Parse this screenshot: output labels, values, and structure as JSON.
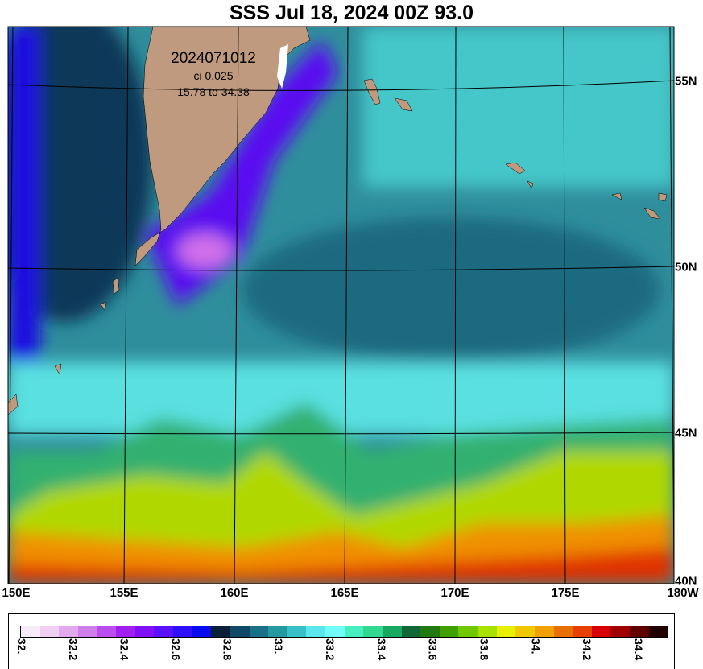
{
  "title": "SSS Jul 18, 2024 00Z 93.0",
  "info": {
    "run": "2024071012",
    "ci": "ci 0.025",
    "range": "15.78 to 34.38"
  },
  "lon_labels": [
    "150E",
    "155E",
    "160E",
    "165E",
    "170E",
    "175E",
    "180W"
  ],
  "lat_labels": [
    "55N",
    "50N",
    "45N",
    "40N"
  ],
  "colorbar": {
    "ticks": [
      "32.",
      "32.2",
      "32.4",
      "32.6",
      "32.8",
      "33.",
      "33.2",
      "33.4",
      "33.6",
      "33.8",
      "34.",
      "34.2",
      "34.4"
    ],
    "colors": [
      "#f8ecfa",
      "#efcff2",
      "#e2aaee",
      "#d07fea",
      "#bb4cee",
      "#a020f0",
      "#8010f5",
      "#5a10f8",
      "#3010fa",
      "#0a0cf0",
      "#0a2038",
      "#104a66",
      "#1a7088",
      "#249aa0",
      "#38c0c8",
      "#5ae6ec",
      "#70fcf8",
      "#48f0c0",
      "#30d890",
      "#18a860",
      "#106838",
      "#207a10",
      "#40a000",
      "#70c800",
      "#a8e000",
      "#e6f000",
      "#f0c800",
      "#f0a000",
      "#e87000",
      "#e84000",
      "#d80000",
      "#a00000",
      "#600000",
      "#200000"
    ]
  },
  "colors": {
    "land": "#c09a7e",
    "ocean_base": "#2a8a98"
  }
}
